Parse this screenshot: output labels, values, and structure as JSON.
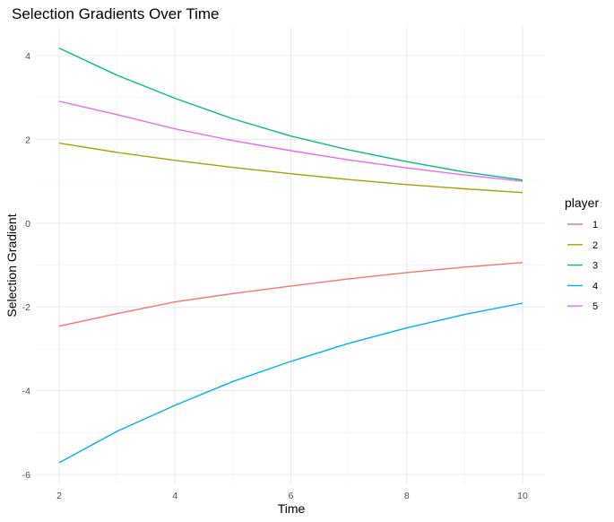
{
  "chart_data": {
    "type": "line",
    "title": "Selection Gradients Over Time",
    "xlabel": "Time",
    "ylabel": "Selection Gradient",
    "x": [
      2,
      3,
      4,
      5,
      6,
      7,
      8,
      9,
      10
    ],
    "xlim": [
      1.6,
      10.4
    ],
    "ylim": [
      -6.2,
      4.6
    ],
    "x_ticks": [
      2,
      4,
      6,
      8,
      10
    ],
    "y_ticks": [
      -6,
      -4,
      -2,
      0,
      2,
      4
    ],
    "grid": true,
    "legend": {
      "title": "player",
      "position": "right"
    },
    "series": [
      {
        "name": "1",
        "color": "#F8766D",
        "values": [
          -2.46,
          -2.16,
          -1.88,
          -1.68,
          -1.5,
          -1.33,
          -1.18,
          -1.05,
          -0.94
        ]
      },
      {
        "name": "2",
        "color": "#A3A500",
        "values": [
          1.91,
          1.69,
          1.5,
          1.33,
          1.18,
          1.04,
          0.92,
          0.82,
          0.73
        ]
      },
      {
        "name": "3",
        "color": "#00BF7D",
        "values": [
          4.18,
          3.53,
          2.98,
          2.49,
          2.08,
          1.75,
          1.47,
          1.22,
          1.03
        ]
      },
      {
        "name": "4",
        "color": "#00B0F6",
        "values": [
          -5.72,
          -4.97,
          -4.35,
          -3.78,
          -3.3,
          -2.87,
          -2.5,
          -2.18,
          -1.91
        ]
      },
      {
        "name": "5",
        "color": "#E76BF3",
        "values": [
          2.91,
          2.59,
          2.25,
          1.97,
          1.73,
          1.51,
          1.32,
          1.15,
          1.0
        ]
      }
    ]
  }
}
